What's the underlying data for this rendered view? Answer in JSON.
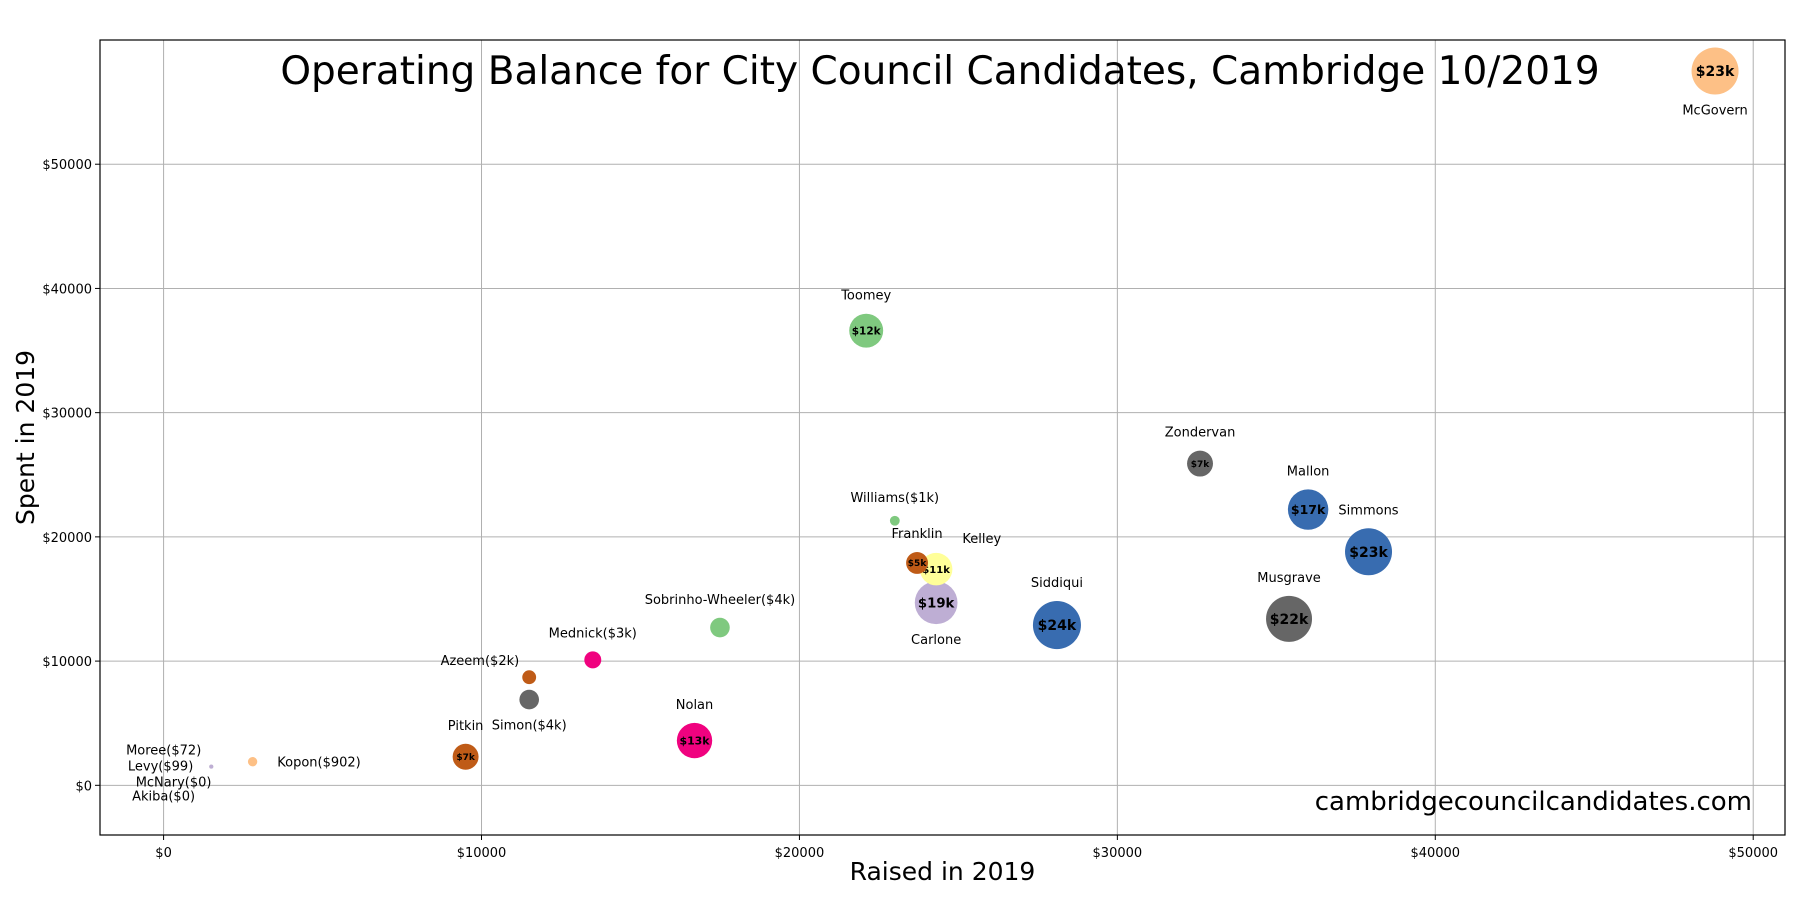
{
  "chart_data": {
    "type": "scatter",
    "title": "Operating Balance for City Council Candidates, Cambridge 10/2019",
    "xlabel": "Raised in 2019",
    "ylabel": "Spent in 2019",
    "watermark": "cambridgecouncilcandidates.com",
    "xlim": [
      -2000,
      51000
    ],
    "ylim": [
      -4000,
      60000
    ],
    "x_ticks": [
      {
        "value": 0,
        "label": "$0"
      },
      {
        "value": 10000,
        "label": "$10000"
      },
      {
        "value": 20000,
        "label": "$20000"
      },
      {
        "value": 30000,
        "label": "$30000"
      },
      {
        "value": 40000,
        "label": "$40000"
      },
      {
        "value": 50000,
        "label": "$50000"
      }
    ],
    "y_ticks": [
      {
        "value": 0,
        "label": "$0"
      },
      {
        "value": 10000,
        "label": "$10000"
      },
      {
        "value": 20000,
        "label": "$20000"
      },
      {
        "value": 30000,
        "label": "$30000"
      },
      {
        "value": 40000,
        "label": "$40000"
      },
      {
        "value": 50000,
        "label": "$50000"
      }
    ],
    "grid": true,
    "marker_size": "balance",
    "points": [
      {
        "name": "McGovern",
        "raised": 48800,
        "spent": 57500,
        "balance": 23000,
        "color": "#fdc086",
        "label": "McGovern",
        "label_pos": "below",
        "bubble_text": "$23k"
      },
      {
        "name": "Toomey",
        "raised": 22100,
        "spent": 36600,
        "balance": 12000,
        "color": "#7fc97f",
        "label": "Toomey",
        "label_pos": "above",
        "bubble_text": "$12k"
      },
      {
        "name": "Zondervan",
        "raised": 32600,
        "spent": 25900,
        "balance": 7000,
        "color": "#666666",
        "label": "Zondervan",
        "label_pos": "above",
        "bubble_text": "$7k"
      },
      {
        "name": "Mallon",
        "raised": 36000,
        "spent": 22200,
        "balance": 17000,
        "color": "#386cb0",
        "label": "Mallon",
        "label_pos": "above",
        "bubble_text": "$17k"
      },
      {
        "name": "Simmons",
        "raised": 37900,
        "spent": 18800,
        "balance": 23000,
        "color": "#386cb0",
        "label": "Simmons",
        "label_pos": "above",
        "bubble_text": "$23k"
      },
      {
        "name": "Musgrave",
        "raised": 35400,
        "spent": 13400,
        "balance": 22000,
        "color": "#666666",
        "label": "Musgrave",
        "label_pos": "above",
        "bubble_text": "$22k"
      },
      {
        "name": "Siddiqui",
        "raised": 28100,
        "spent": 12900,
        "balance": 24000,
        "color": "#386cb0",
        "label": "Siddiqui",
        "label_pos": "above",
        "bubble_text": "$24k"
      },
      {
        "name": "Carlone",
        "raised": 24300,
        "spent": 14700,
        "balance": 19000,
        "color": "#beaed4",
        "label": "Carlone",
        "label_pos": "below",
        "bubble_text": "$19k"
      },
      {
        "name": "Kelley",
        "raised": 24300,
        "spent": 17400,
        "balance": 11000,
        "color": "#ffff99",
        "label": "Kelley",
        "label_pos": "above-right",
        "bubble_text": "$11k"
      },
      {
        "name": "Franklin",
        "raised": 23700,
        "spent": 17900,
        "balance": 5000,
        "color": "#bf5b17",
        "label": "Franklin",
        "label_pos": "above",
        "bubble_text": "$5k"
      },
      {
        "name": "Williams",
        "raised": 23000,
        "spent": 21300,
        "balance": 1000,
        "color": "#7fc97f",
        "label": "Williams($1k)",
        "label_pos": "above",
        "bubble_text": ""
      },
      {
        "name": "Sobrinho-Wheeler",
        "raised": 17500,
        "spent": 12700,
        "balance": 4000,
        "color": "#7fc97f",
        "label": "Sobrinho-Wheeler($4k)",
        "label_pos": "above",
        "bubble_text": ""
      },
      {
        "name": "Mednick",
        "raised": 13500,
        "spent": 10100,
        "balance": 3000,
        "color": "#f0027f",
        "label": "Mednick($3k)",
        "label_pos": "above",
        "bubble_text": ""
      },
      {
        "name": "Azeem",
        "raised": 11500,
        "spent": 8700,
        "balance": 2000,
        "color": "#bf5b17",
        "label": "Azeem($2k)",
        "label_pos": "above-left",
        "bubble_text": ""
      },
      {
        "name": "Simon",
        "raised": 11500,
        "spent": 6900,
        "balance": 4000,
        "color": "#666666",
        "label": "Simon($4k)",
        "label_pos": "below",
        "bubble_text": ""
      },
      {
        "name": "Nolan",
        "raised": 16700,
        "spent": 3600,
        "balance": 13000,
        "color": "#f0027f",
        "label": "Nolan",
        "label_pos": "above",
        "bubble_text": "$13k"
      },
      {
        "name": "Pitkin",
        "raised": 9500,
        "spent": 2300,
        "balance": 7000,
        "color": "#bf5b17",
        "label": "Pitkin",
        "label_pos": "above",
        "bubble_text": "$7k"
      },
      {
        "name": "Kopon",
        "raised": 2800,
        "spent": 1900,
        "balance": 902,
        "color": "#fdc086",
        "label": "Kopon($902)",
        "label_pos": "right",
        "bubble_text": ""
      },
      {
        "name": "Moree",
        "raised": 1500,
        "spent": 1500,
        "balance": 72,
        "color": "#beaed4",
        "label": "Moree($72)",
        "label_pos": "above-left",
        "bubble_text": ""
      },
      {
        "name": "Levy",
        "raised": 1500,
        "spent": 1500,
        "balance": 99,
        "color": "#bdbdbd",
        "label": "Levy($99)",
        "label_pos": "left",
        "bubble_text": ""
      },
      {
        "name": "McNary",
        "raised": 0,
        "spent": 0,
        "balance": 0,
        "color": "#bdbdbd",
        "label": "McNary($0)",
        "label_pos": "below-left",
        "bubble_text": ""
      },
      {
        "name": "Akiba",
        "raised": 0,
        "spent": 0,
        "balance": 0,
        "color": "#bdbdbd",
        "label": "Akiba($0)",
        "label_pos": "below-left-2",
        "bubble_text": ""
      }
    ]
  }
}
